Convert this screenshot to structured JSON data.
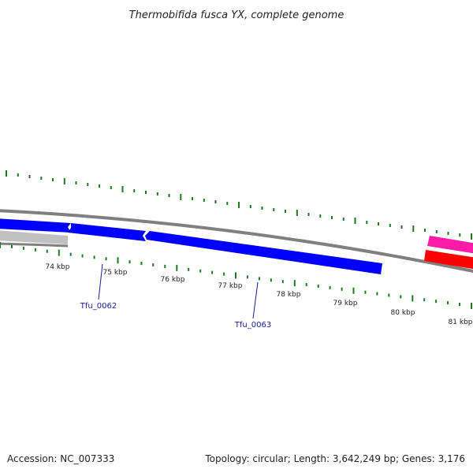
{
  "title": "Thermobifida fusca YX, complete genome",
  "footer": {
    "accession": "Accession: NC_007333",
    "summary": "Topology: circular; Length: 3,642,249 bp; Genes: 3,176"
  },
  "tick_labels": [
    "74 kbp",
    "75 kbp",
    "76 kbp",
    "77 kbp",
    "78 kbp",
    "79 kbp",
    "80 kbp",
    "81 kbp"
  ],
  "gene_labels": [
    "Tfu_0062",
    "Tfu_0063"
  ],
  "colors": {
    "backbone": "#808080",
    "gene_forward": "#0000ff",
    "gene_reverse_grey": "#c0c0c0",
    "gene_magenta": "#ff1aa8",
    "gene_red": "#ff0000",
    "ticks": "#1f7a1f",
    "label_text": "#1a1a9a"
  }
}
